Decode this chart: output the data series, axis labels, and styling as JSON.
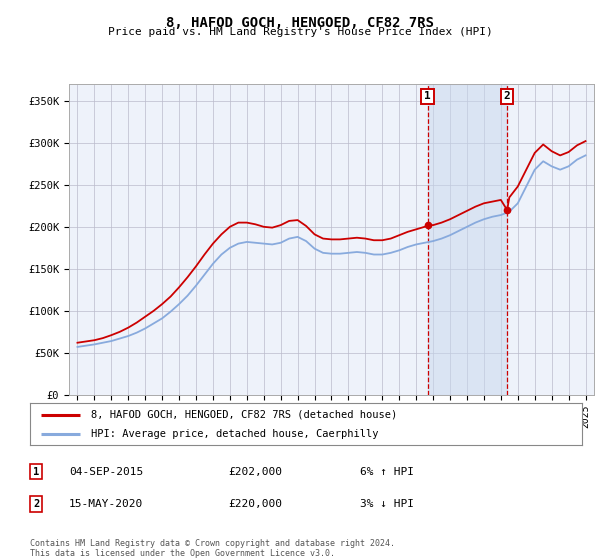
{
  "title": "8, HAFOD GOCH, HENGOED, CF82 7RS",
  "subtitle": "Price paid vs. HM Land Registry's House Price Index (HPI)",
  "legend_line1": "8, HAFOD GOCH, HENGOED, CF82 7RS (detached house)",
  "legend_line2": "HPI: Average price, detached house, Caerphilly",
  "footer": "Contains HM Land Registry data © Crown copyright and database right 2024.\nThis data is licensed under the Open Government Licence v3.0.",
  "annotation1_label": "1",
  "annotation1_date": "04-SEP-2015",
  "annotation1_price": "£202,000",
  "annotation1_hpi": "6% ↑ HPI",
  "annotation2_label": "2",
  "annotation2_date": "15-MAY-2020",
  "annotation2_price": "£220,000",
  "annotation2_hpi": "3% ↓ HPI",
  "sale1_year": 2015.67,
  "sale1_price": 202000,
  "sale2_year": 2020.37,
  "sale2_price": 220000,
  "ylim": [
    0,
    370000
  ],
  "xlim_start": 1994.5,
  "xlim_end": 2025.5,
  "background_color": "#ffffff",
  "plot_bg_color": "#eef2fa",
  "grid_color": "#bbbbcc",
  "line_color_property": "#cc0000",
  "line_color_hpi": "#88aadd",
  "shade_color": "#c8d8ee",
  "annotation_box_color": "#cc0000",
  "yticks": [
    0,
    50000,
    100000,
    150000,
    200000,
    250000,
    300000,
    350000
  ],
  "ytick_labels": [
    "£0",
    "£50K",
    "£100K",
    "£150K",
    "£200K",
    "£250K",
    "£300K",
    "£350K"
  ],
  "xtick_years": [
    1995,
    1996,
    1997,
    1998,
    1999,
    2000,
    2001,
    2002,
    2003,
    2004,
    2005,
    2006,
    2007,
    2008,
    2009,
    2010,
    2011,
    2012,
    2013,
    2014,
    2015,
    2016,
    2017,
    2018,
    2019,
    2020,
    2021,
    2022,
    2023,
    2024,
    2025
  ],
  "hpi_years": [
    1995.0,
    1995.5,
    1996.0,
    1996.5,
    1997.0,
    1997.5,
    1998.0,
    1998.5,
    1999.0,
    1999.5,
    2000.0,
    2000.5,
    2001.0,
    2001.5,
    2002.0,
    2002.5,
    2003.0,
    2003.5,
    2004.0,
    2004.5,
    2005.0,
    2005.5,
    2006.0,
    2006.5,
    2007.0,
    2007.5,
    2008.0,
    2008.5,
    2009.0,
    2009.5,
    2010.0,
    2010.5,
    2011.0,
    2011.5,
    2012.0,
    2012.5,
    2013.0,
    2013.5,
    2014.0,
    2014.5,
    2015.0,
    2015.5,
    2016.0,
    2016.5,
    2017.0,
    2017.5,
    2018.0,
    2018.5,
    2019.0,
    2019.5,
    2020.0,
    2020.5,
    2021.0,
    2021.5,
    2022.0,
    2022.5,
    2023.0,
    2023.5,
    2024.0,
    2024.5,
    2025.0
  ],
  "hpi_values": [
    57000,
    58500,
    60000,
    62000,
    64000,
    67000,
    70000,
    74000,
    79000,
    85000,
    91000,
    99000,
    108000,
    118000,
    130000,
    143000,
    156000,
    167000,
    175000,
    180000,
    182000,
    181000,
    180000,
    179000,
    181000,
    186000,
    188000,
    183000,
    174000,
    169000,
    168000,
    168000,
    169000,
    170000,
    169000,
    167000,
    167000,
    169000,
    172000,
    176000,
    179000,
    181000,
    183000,
    186000,
    190000,
    195000,
    200000,
    205000,
    209000,
    212000,
    214000,
    218000,
    228000,
    248000,
    268000,
    278000,
    272000,
    268000,
    272000,
    280000,
    285000
  ],
  "prop_years": [
    1995.0,
    1995.5,
    1996.0,
    1996.5,
    1997.0,
    1997.5,
    1998.0,
    1998.5,
    1999.0,
    1999.5,
    2000.0,
    2000.5,
    2001.0,
    2001.5,
    2002.0,
    2002.5,
    2003.0,
    2003.5,
    2004.0,
    2004.5,
    2005.0,
    2005.5,
    2006.0,
    2006.5,
    2007.0,
    2007.5,
    2008.0,
    2008.5,
    2009.0,
    2009.5,
    2010.0,
    2010.5,
    2011.0,
    2011.5,
    2012.0,
    2012.5,
    2013.0,
    2013.5,
    2014.0,
    2014.5,
    2015.0,
    2015.5,
    2015.67,
    2016.0,
    2016.5,
    2017.0,
    2017.5,
    2018.0,
    2018.5,
    2019.0,
    2019.5,
    2020.0,
    2020.37,
    2020.5,
    2021.0,
    2021.5,
    2022.0,
    2022.5,
    2023.0,
    2023.5,
    2024.0,
    2024.5,
    2025.0
  ],
  "prop_values": [
    62000,
    63500,
    65000,
    67500,
    71000,
    75000,
    80000,
    86000,
    93000,
    100000,
    108000,
    117000,
    128000,
    140000,
    153000,
    167000,
    180000,
    191000,
    200000,
    205000,
    205000,
    203000,
    200000,
    199000,
    202000,
    207000,
    208000,
    201000,
    191000,
    186000,
    185000,
    185000,
    186000,
    187000,
    186000,
    184000,
    184000,
    186000,
    190000,
    194000,
    197000,
    200000,
    202000,
    202000,
    205000,
    209000,
    214000,
    219000,
    224000,
    228000,
    230000,
    232000,
    220000,
    235000,
    248000,
    268000,
    288000,
    298000,
    290000,
    285000,
    289000,
    297000,
    302000
  ]
}
